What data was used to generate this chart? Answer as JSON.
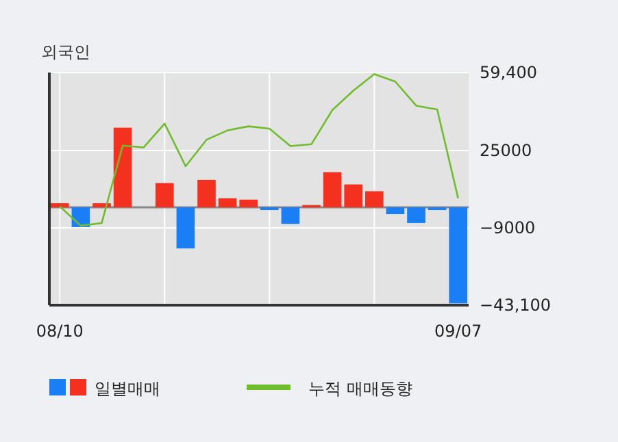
{
  "chart_data": {
    "type": "bar",
    "title": "외국인",
    "categories": [
      "08/10",
      null,
      null,
      null,
      null,
      null,
      null,
      null,
      null,
      null,
      null,
      null,
      null,
      null,
      null,
      null,
      null,
      null,
      null,
      "09/07"
    ],
    "series": [
      {
        "name": "일별매매",
        "colors": [
          "#f4311f",
          "#1a7ef5",
          "#f4311f",
          "#f4311f",
          "#f4311f",
          "#f4311f",
          "#1a7ef5",
          "#f4311f",
          "#f4311f",
          "#f4311f",
          "#1a7ef5",
          "#1a7ef5",
          "#f4311f",
          "#f4311f",
          "#f4311f",
          "#f4311f",
          "#1a7ef5",
          "#1a7ef5",
          "#1a7ef5",
          "#1a7ef5"
        ],
        "values": [
          1800,
          -8700,
          1800,
          35100,
          0,
          10700,
          -18100,
          12100,
          4000,
          3400,
          -1200,
          -7300,
          1000,
          15500,
          10100,
          7100,
          -3000,
          -6900,
          -1200,
          -42300
        ]
      },
      {
        "name": "누적 매매동향",
        "type": "line",
        "color": "#6fbd2c",
        "values": [
          400,
          -8100,
          -6900,
          27200,
          26400,
          36900,
          18100,
          29800,
          33900,
          35700,
          34700,
          27000,
          27800,
          42900,
          51400,
          58700,
          55400,
          44800,
          43100,
          4000
        ]
      }
    ],
    "ylim": [
      -43100,
      59400
    ],
    "yticks": [
      {
        "value": 59400,
        "label": "59,400"
      },
      {
        "value": 25000,
        "label": "25000"
      },
      {
        "value": -9000,
        "label": "−9000"
      },
      {
        "value": -43100,
        "label": "−43,100"
      }
    ],
    "grid": true,
    "legend": "bottom"
  }
}
